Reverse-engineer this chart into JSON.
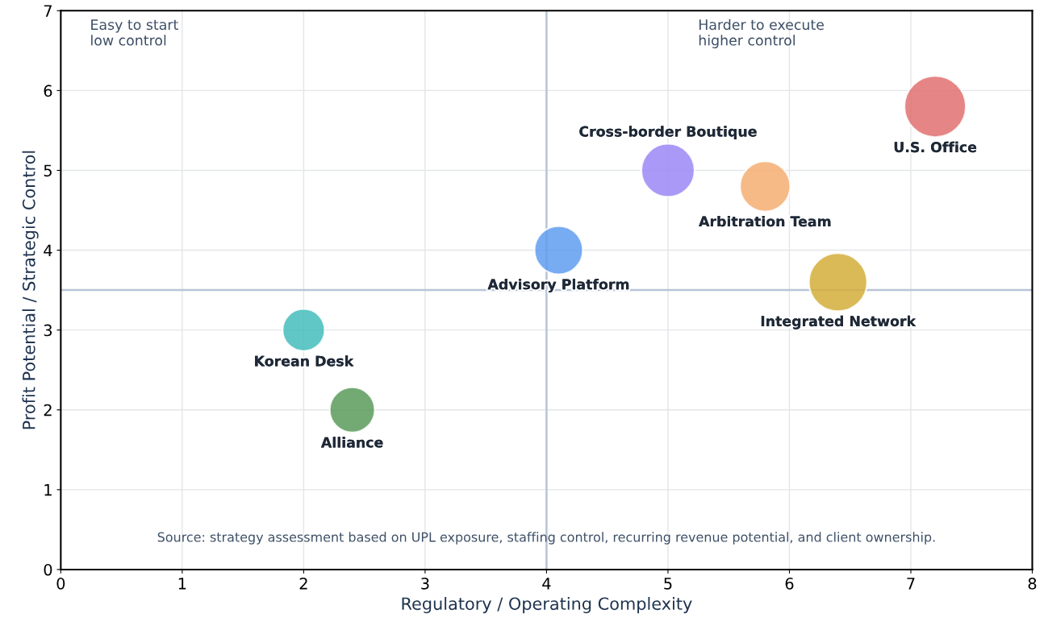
{
  "chart_data": {
    "type": "bubble",
    "xlabel": "Regulatory / Operating Complexity",
    "ylabel": "Profit Potential / Strategic Control",
    "xlim": [
      0,
      8
    ],
    "xticks": [
      0,
      1,
      2,
      3,
      4,
      5,
      6,
      7,
      8
    ],
    "ylim": [
      0,
      7
    ],
    "yticks": [
      0,
      1,
      2,
      3,
      4,
      5,
      6,
      7
    ],
    "grid": true,
    "legend": false,
    "series": [
      {
        "name": "Korean Desk",
        "color": "#44bcbc",
        "x": [
          2
        ],
        "values": [
          3
        ],
        "sizes": [
          0.47
        ]
      },
      {
        "name": "Alliance",
        "color": "#5a9a5a",
        "x": [
          2.4
        ],
        "values": [
          2
        ],
        "sizes": [
          0.54
        ]
      },
      {
        "name": "Advisory Platform",
        "color": "#5f9cf0",
        "x": [
          4.1
        ],
        "values": [
          4
        ],
        "sizes": [
          0.62
        ]
      },
      {
        "name": "Cross-border Boutique",
        "color": "#9b87f5",
        "x": [
          5
        ],
        "values": [
          5
        ],
        "sizes": [
          0.75
        ]
      },
      {
        "name": "Arbitration Team",
        "color": "#f5ae72",
        "x": [
          5.8
        ],
        "values": [
          4.8
        ],
        "sizes": [
          0.67
        ]
      },
      {
        "name": "Integrated Network",
        "color": "#d4ae3a",
        "x": [
          6.4
        ],
        "values": [
          3.6
        ],
        "sizes": [
          0.9
        ]
      },
      {
        "name": "U.S. Office",
        "color": "#e07070",
        "x": [
          7.2
        ],
        "values": [
          5.8
        ],
        "sizes": [
          1
        ]
      }
    ],
    "ref_lines": [
      {
        "axis": "x",
        "value": 4,
        "color": "#b8c4d8"
      },
      {
        "axis": "y",
        "value": 3.5,
        "color": "#b8c4d8"
      }
    ],
    "annotations": [
      "Easy to start\nlow control",
      "Harder to execute\nhigher control",
      "Source: strategy assessment based on UPL exposure, staffing control, recurring revenue potential, and client ownership."
    ]
  }
}
